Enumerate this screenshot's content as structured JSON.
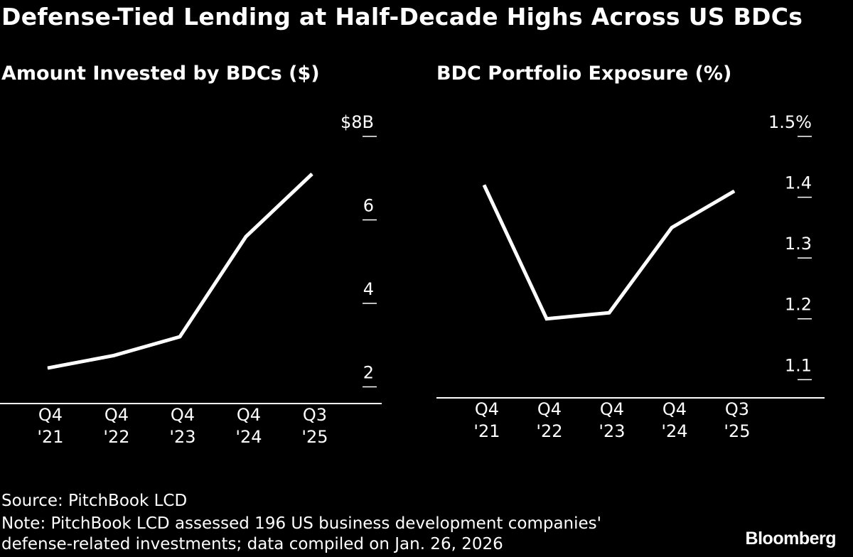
{
  "title": "Defense-Tied Lending at Half-Decade Highs Across US BDCs",
  "footer": {
    "source": "Source: PitchBook LCD",
    "note_line1": "Note: PitchBook LCD assessed 196 US business development companies'",
    "note_line2": "defense-related investments; data compiled on Jan. 26, 2026",
    "brand": "Bloomberg"
  },
  "colors": {
    "background": "#000000",
    "line": "#ffffff",
    "text": "#ffffff"
  },
  "chart_data": [
    {
      "type": "line",
      "title": "Amount Invested by BDCs ($)",
      "categories": [
        [
          "Q4",
          "'21"
        ],
        [
          "Q4",
          "'22"
        ],
        [
          "Q4",
          "'23"
        ],
        [
          "Q4",
          "'24"
        ],
        [
          "Q3",
          "'25"
        ]
      ],
      "series": [
        {
          "name": "Amount invested",
          "values": [
            2.45,
            2.75,
            3.2,
            5.6,
            7.1
          ]
        }
      ],
      "ylim": [
        1.6,
        8
      ],
      "yticks": [
        2,
        4,
        6,
        8
      ],
      "ytick_labels": [
        "2",
        "4",
        "6",
        "$8B"
      ],
      "y_axis_side": "right",
      "xlabel": "",
      "ylabel": ""
    },
    {
      "type": "line",
      "title": "BDC Portfolio Exposure (%)",
      "categories": [
        [
          "Q4",
          "'21"
        ],
        [
          "Q4",
          "'22"
        ],
        [
          "Q4",
          "'23"
        ],
        [
          "Q4",
          "'24"
        ],
        [
          "Q3",
          "'25"
        ]
      ],
      "series": [
        {
          "name": "Portfolio exposure",
          "values": [
            1.42,
            1.2,
            1.21,
            1.35,
            1.41
          ]
        }
      ],
      "ylim": [
        1.07,
        1.5
      ],
      "yticks": [
        1.1,
        1.2,
        1.3,
        1.4,
        1.5
      ],
      "ytick_labels": [
        "1.1",
        "1.2",
        "1.3",
        "1.4",
        "1.5%"
      ],
      "y_axis_side": "right",
      "xlabel": "",
      "ylabel": ""
    }
  ]
}
